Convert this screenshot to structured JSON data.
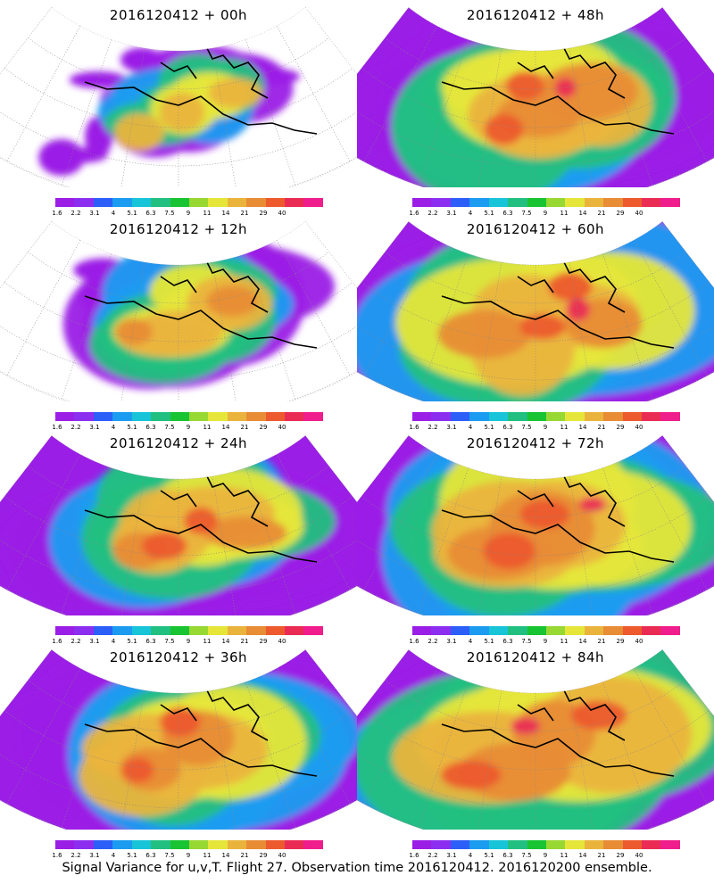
{
  "caption": "Signal Variance for u,v,T. Flight 27. Observation time 2016120412. 2016120200 ensemble.",
  "colorbar": {
    "colors": [
      "#9b1ee6",
      "#8c2ef0",
      "#2c5ef8",
      "#1c9cf0",
      "#18c4d8",
      "#22c080",
      "#19c432",
      "#98d833",
      "#e6e63a",
      "#eab43c",
      "#e88c35",
      "#ec5a2e",
      "#ea2c55",
      "#f01d8c"
    ],
    "labels": [
      "1.6",
      "2.2",
      "3.1",
      "4",
      "5.1",
      "6.3",
      "7.5",
      "9",
      "11",
      "14",
      "21",
      "29",
      "40"
    ]
  },
  "panels": [
    {
      "title": "2016120412 + 00h",
      "intensity": 0.5
    },
    {
      "title": "2016120412 + 48h",
      "intensity": 1.25
    },
    {
      "title": "2016120412 + 12h",
      "intensity": 0.75
    },
    {
      "title": "2016120412 + 60h",
      "intensity": 1.35
    },
    {
      "title": "2016120412 + 24h",
      "intensity": 1.0
    },
    {
      "title": "2016120412 + 72h",
      "intensity": 1.45
    },
    {
      "title": "2016120412 + 36h",
      "intensity": 1.15
    },
    {
      "title": "2016120412 + 84h",
      "intensity": 1.55
    }
  ]
}
